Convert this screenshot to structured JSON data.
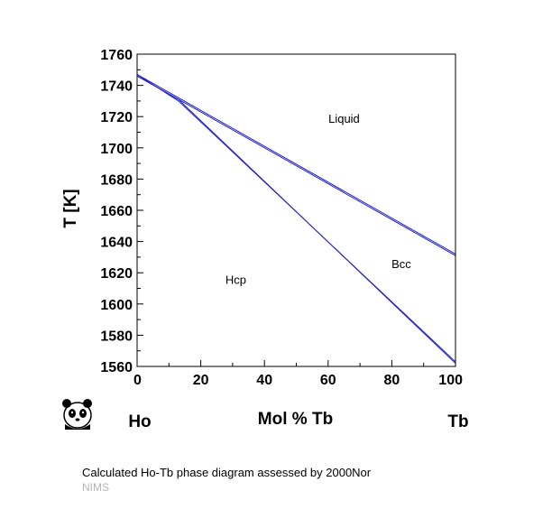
{
  "chart_data": {
    "type": "line",
    "title": "",
    "xlabel": "Mol % Tb",
    "ylabel": "T [K]",
    "xlim": [
      0,
      100
    ],
    "ylim": [
      1560,
      1760
    ],
    "x_ticks": [
      0,
      20,
      40,
      60,
      80,
      100
    ],
    "y_ticks": [
      1560,
      1580,
      1600,
      1620,
      1640,
      1660,
      1680,
      1700,
      1720,
      1740,
      1760
    ],
    "grid": false,
    "line_color": "#2222cc",
    "end_labels": {
      "left": "Ho",
      "right": "Tb"
    },
    "regions": [
      {
        "label": "Liquid",
        "x": 65,
        "y": 1716
      },
      {
        "label": "Bcc",
        "x": 83,
        "y": 1623
      },
      {
        "label": "Hcp",
        "x": 31,
        "y": 1613
      }
    ],
    "series": [
      {
        "x": [
          0,
          100
        ],
        "y": [
          1747,
          1632
        ]
      },
      {
        "x": [
          0,
          100
        ],
        "y": [
          1746,
          1631
        ]
      },
      {
        "x": [
          0,
          13,
          100
        ],
        "y": [
          1747,
          1730,
          1563
        ]
      },
      {
        "x": [
          0,
          13,
          100
        ],
        "y": [
          1746,
          1731,
          1562
        ]
      }
    ]
  },
  "footer": {
    "caption": "Calculated Ho-Tb phase diagram assessed by 2000Nor",
    "credit": "NIMS"
  },
  "logo": {
    "icon": "panda-logo-icon"
  }
}
